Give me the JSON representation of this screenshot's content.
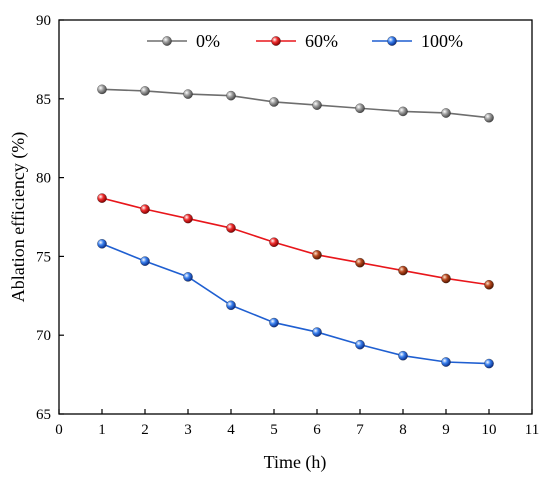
{
  "chart_data": {
    "type": "line",
    "title": "",
    "xlabel": "Time (h)",
    "ylabel": "Ablation efficiency (%)",
    "xlim": [
      0,
      11
    ],
    "ylim": [
      65,
      90
    ],
    "xticks": [
      0,
      1,
      2,
      3,
      4,
      5,
      6,
      7,
      8,
      9,
      10,
      11
    ],
    "yticks": [
      65,
      70,
      75,
      80,
      85,
      90
    ],
    "x": [
      1,
      2,
      3,
      4,
      5,
      6,
      7,
      8,
      9,
      10
    ],
    "series": [
      {
        "name": "0%",
        "color": "#6e6e6e",
        "marker_color": "#8c8c8c",
        "values": [
          85.6,
          85.5,
          85.3,
          85.2,
          84.8,
          84.6,
          84.4,
          84.2,
          84.1,
          83.8
        ]
      },
      {
        "name": "60%",
        "color": "#e8161b",
        "marker_color": "#e8161b",
        "values": [
          78.7,
          78.0,
          77.4,
          76.8,
          75.9,
          75.1,
          74.6,
          74.1,
          73.6,
          73.2
        ]
      },
      {
        "name": "100%",
        "color": "#1f5fd1",
        "marker_color": "#2a6fe0",
        "values": [
          75.8,
          74.7,
          73.7,
          71.9,
          70.8,
          70.2,
          69.4,
          68.7,
          68.3,
          68.2
        ]
      }
    ],
    "legend": "top",
    "grid": false
  }
}
